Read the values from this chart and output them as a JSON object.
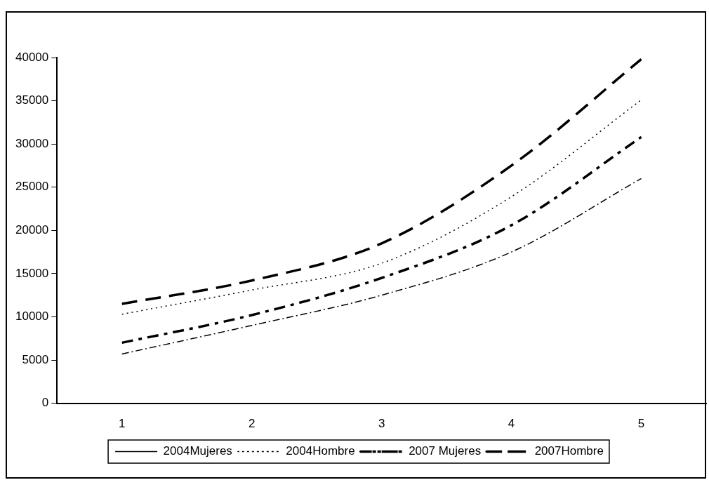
{
  "chart_data": {
    "type": "line",
    "categories": [
      "1",
      "2",
      "3",
      "4",
      "5"
    ],
    "series": [
      {
        "name": "2004Mujeres",
        "color": "#000000",
        "line_style": "dashdot",
        "values": [
          5700,
          9000,
          12500,
          17500,
          26000
        ]
      },
      {
        "name": "2004Hombre",
        "color": "#000000",
        "line_style": "dotted",
        "values": [
          10300,
          13100,
          16200,
          23900,
          35100
        ]
      },
      {
        "name": "2007 Mujeres",
        "color": "#000000",
        "line_style": "dashdot",
        "values": [
          7000,
          10200,
          14500,
          20600,
          30800
        ]
      },
      {
        "name": "2007Hombre",
        "color": "#000000",
        "line_style": "dashed",
        "values": [
          11500,
          14200,
          18500,
          27500,
          39800
        ]
      }
    ],
    "ylim": [
      0,
      40000
    ],
    "yticks": [
      0,
      5000,
      10000,
      15000,
      20000,
      25000,
      30000,
      35000,
      40000
    ],
    "grid": false,
    "legend": "bottom",
    "marker": "none"
  }
}
